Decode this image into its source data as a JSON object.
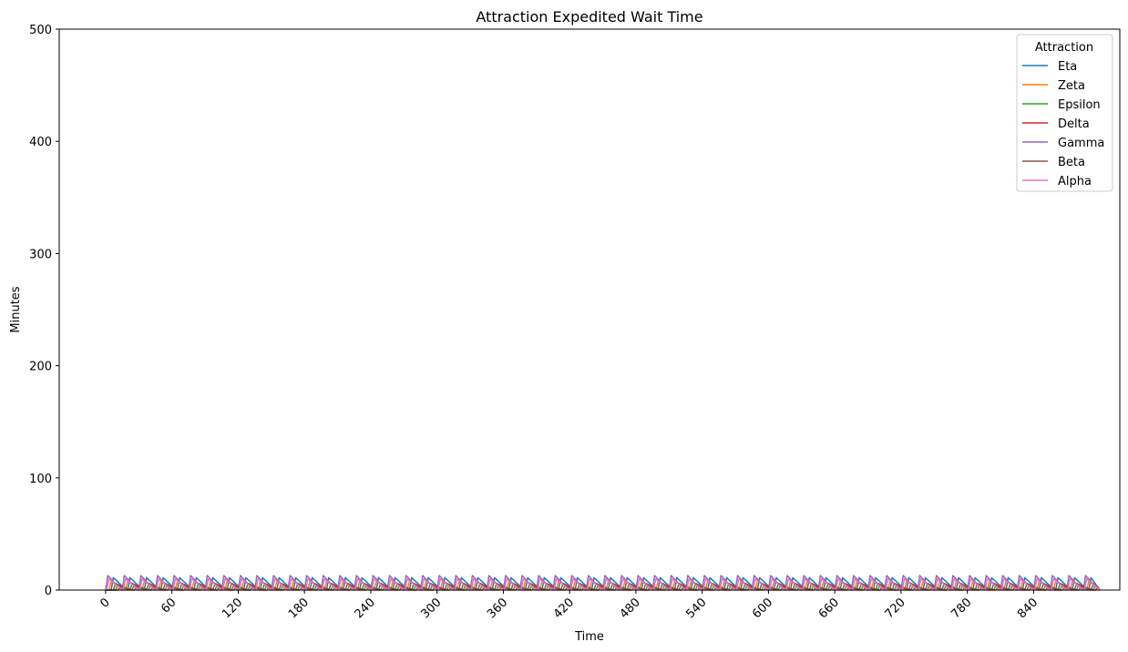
{
  "chart_data": {
    "type": "line",
    "title": "Attraction Expedited Wait Time",
    "xlabel": "Time",
    "ylabel": "Minutes",
    "xlim": [
      -42,
      918
    ],
    "ylim": [
      0,
      500
    ],
    "xticks": [
      0,
      60,
      120,
      180,
      240,
      300,
      360,
      420,
      480,
      540,
      600,
      660,
      720,
      780,
      840
    ],
    "yticks": [
      0,
      100,
      200,
      300,
      400,
      500
    ],
    "xtick_rotation": 45,
    "grid": false,
    "legend": {
      "title": "Attraction",
      "placement": "top-right"
    },
    "series": [
      {
        "name": "Eta",
        "color": "#1f77b4",
        "period": 15,
        "phase": 5,
        "peak": 11,
        "ramp": 2
      },
      {
        "name": "Zeta",
        "color": "#ff7f0e",
        "period": 15,
        "phase": 3,
        "peak": 8,
        "ramp": 2
      },
      {
        "name": "Epsilon",
        "color": "#2ca02c",
        "period": 15,
        "phase": 9,
        "peak": 5,
        "ramp": 2
      },
      {
        "name": "Delta",
        "color": "#d62728",
        "period": 15,
        "phase": 11,
        "peak": 3,
        "ramp": 2
      },
      {
        "name": "Gamma",
        "color": "#9467bd",
        "period": 15,
        "phase": 0,
        "peak": 13,
        "ramp": 2
      },
      {
        "name": "Beta",
        "color": "#8c564b",
        "period": 15,
        "phase": 7,
        "peak": 6,
        "ramp": 2
      },
      {
        "name": "Alpha",
        "color": "#e377c2",
        "period": 15,
        "phase": 1,
        "peak": 10,
        "ramp": 2
      }
    ],
    "x_end": 900
  }
}
